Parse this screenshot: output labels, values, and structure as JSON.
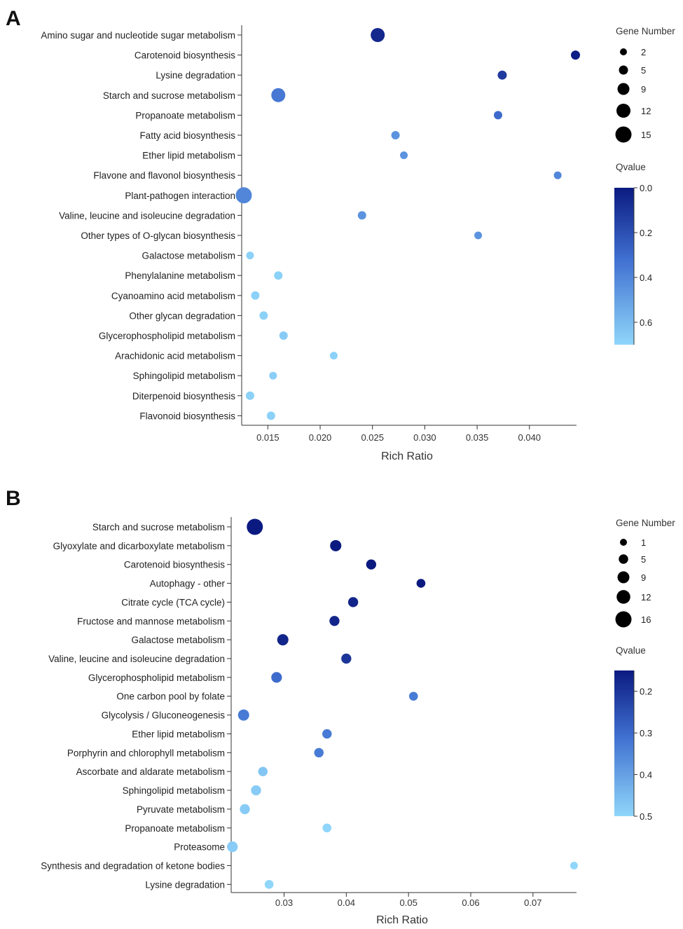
{
  "chart_data": [
    {
      "type": "scatter",
      "panel": "A",
      "xlabel": "Rich Ratio",
      "ylabel": "",
      "xlim": [
        0.0125,
        0.0445
      ],
      "xticks": [
        0.015,
        0.02,
        0.025,
        0.03,
        0.035,
        0.04
      ],
      "xtick_labels": [
        "0.015",
        "0.020",
        "0.025",
        "0.030",
        "0.035",
        "0.040"
      ],
      "categories": [
        "Amino sugar and nucleotide sugar metabolism",
        "Carotenoid biosynthesis",
        "Lysine degradation",
        "Starch and sucrose metabolism",
        "Propanoate metabolism",
        "Fatty acid biosynthesis",
        "Ether lipid metabolism",
        "Flavone and flavonol biosynthesis",
        "Plant-pathogen interaction",
        "Valine, leucine and isoleucine degradation",
        "Other types of O-glycan biosynthesis",
        "Galactose metabolism",
        "Phenylalanine metabolism",
        "Cyanoamino acid metabolism",
        "Other glycan degradation",
        "Glycerophospholipid metabolism",
        "Arachidonic acid metabolism",
        "Sphingolipid metabolism",
        "Diterpenoid biosynthesis",
        "Flavonoid biosynthesis"
      ],
      "rich_ratio": [
        0.0255,
        0.0444,
        0.0374,
        0.016,
        0.037,
        0.0272,
        0.028,
        0.0427,
        0.0127,
        0.024,
        0.0351,
        0.0133,
        0.016,
        0.0138,
        0.0146,
        0.0165,
        0.0213,
        0.0155,
        0.0133,
        0.0153
      ],
      "gene_number": [
        12,
        5,
        5,
        12,
        4,
        4,
        3,
        3,
        15,
        4,
        3,
        3,
        4,
        4,
        4,
        4,
        3,
        3,
        4,
        4
      ],
      "qvalue": [
        0.05,
        0.02,
        0.12,
        0.35,
        0.3,
        0.45,
        0.45,
        0.4,
        0.4,
        0.45,
        0.45,
        0.68,
        0.68,
        0.68,
        0.68,
        0.66,
        0.68,
        0.67,
        0.68,
        0.68
      ],
      "size_legend": {
        "title": "Gene Number",
        "values": [
          2,
          5,
          9,
          12,
          15
        ],
        "labels": [
          "2",
          "5",
          "9",
          "12",
          "15"
        ]
      },
      "color_legend": {
        "title": "Qvalue",
        "range": [
          0.0,
          0.7
        ],
        "ticks": [
          0.0,
          0.2,
          0.4,
          0.6
        ],
        "tick_labels": [
          "0.0",
          "0.2",
          "0.4",
          "0.6"
        ],
        "color_low": "#0b1a80",
        "color_high": "#8fd6fa"
      }
    },
    {
      "type": "scatter",
      "panel": "B",
      "xlabel": "Rich Ratio",
      "ylabel": "",
      "xlim": [
        0.0215,
        0.077
      ],
      "xticks": [
        0.03,
        0.04,
        0.05,
        0.06,
        0.07
      ],
      "xtick_labels": [
        "0.03",
        "0.04",
        "0.05",
        "0.06",
        "0.07"
      ],
      "categories": [
        "Starch and sucrose metabolism",
        "Glyoxylate and dicarboxylate metabolism",
        "Carotenoid biosynthesis",
        "Autophagy - other",
        "Citrate cycle (TCA cycle)",
        "Fructose and mannose metabolism",
        "Galactose metabolism",
        "Valine, leucine and isoleucine degradation",
        "Glycerophospholipid metabolism",
        "One carbon pool by folate",
        "Glycolysis / Gluconeogenesis",
        "Ether lipid metabolism",
        "Porphyrin and chlorophyll metabolism",
        "Ascorbate and aldarate metabolism",
        "Sphingolipid metabolism",
        "Pyruvate metabolism",
        "Propanoate metabolism",
        "Proteasome",
        "Synthesis and degradation of ketone bodies",
        "Lysine degradation"
      ],
      "rich_ratio": [
        0.0253,
        0.0383,
        0.044,
        0.052,
        0.0411,
        0.0381,
        0.0298,
        0.04,
        0.0288,
        0.0508,
        0.0235,
        0.0369,
        0.0356,
        0.0266,
        0.0255,
        0.0237,
        0.0369,
        0.0217,
        0.0766,
        0.0276
      ],
      "gene_number": [
        16,
        8,
        6,
        4,
        6,
        6,
        8,
        6,
        7,
        4,
        8,
        5,
        5,
        5,
        6,
        6,
        4,
        7,
        2,
        4
      ],
      "qvalue": [
        0.15,
        0.15,
        0.15,
        0.15,
        0.17,
        0.17,
        0.17,
        0.2,
        0.3,
        0.33,
        0.33,
        0.33,
        0.33,
        0.47,
        0.48,
        0.48,
        0.5,
        0.48,
        0.5,
        0.5
      ],
      "size_legend": {
        "title": "Gene Number",
        "values": [
          1,
          5,
          9,
          12,
          16
        ],
        "labels": [
          "1",
          "5",
          "9",
          "12",
          "16"
        ]
      },
      "color_legend": {
        "title": "Qvalue",
        "range": [
          0.15,
          0.5
        ],
        "ticks": [
          0.2,
          0.3,
          0.4,
          0.5
        ],
        "tick_labels": [
          "0.2",
          "0.3",
          "0.4",
          "0.5"
        ],
        "color_low": "#0b1a80",
        "color_high": "#8fd6fa"
      }
    }
  ],
  "colors": {
    "qvalue_low": "#0b1a80",
    "qvalue_high": "#8fd6fa",
    "axis": "#333333",
    "legend_dot": "#000000"
  }
}
